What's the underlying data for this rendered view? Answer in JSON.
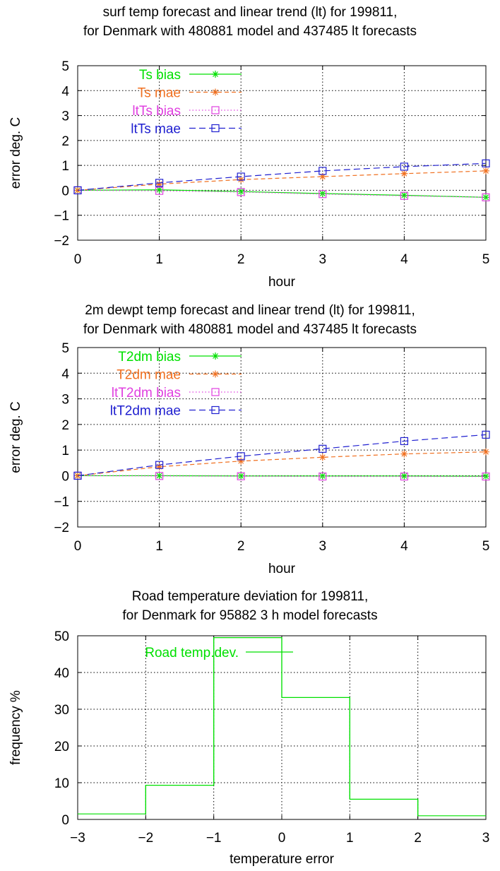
{
  "chart_data": [
    {
      "type": "line",
      "title": "surf temp forecast and linear trend (lt) for 199811,",
      "subtitle": "for Denmark with 480881 model and 437485 lt forecasts",
      "xlabel": "hour",
      "ylabel": "error deg. C",
      "xlim": [
        0,
        5
      ],
      "ylim": [
        -2,
        5
      ],
      "x_ticks": [
        0,
        1,
        2,
        3,
        4,
        5
      ],
      "y_ticks": [
        -2,
        -1,
        0,
        1,
        2,
        3,
        4,
        5
      ],
      "grid": true,
      "legend_position": "top-left",
      "x": [
        0,
        1,
        2,
        3,
        4,
        5
      ],
      "series": [
        {
          "name": "Ts bias",
          "color": "#00e000",
          "dash": "solid",
          "marker": "asterisk",
          "values": [
            0,
            0.02,
            -0.05,
            -0.13,
            -0.2,
            -0.28
          ]
        },
        {
          "name": "Ts mae",
          "color": "#f07020",
          "dash": "dashed",
          "marker": "asterisk",
          "values": [
            0,
            0.25,
            0.43,
            0.55,
            0.67,
            0.78
          ]
        },
        {
          "name": "ltTs bias",
          "color": "#e040e0",
          "dash": "dotted",
          "marker": "square",
          "values": [
            0,
            -0.02,
            -0.07,
            -0.15,
            -0.22,
            -0.28
          ]
        },
        {
          "name": "ltTs mae",
          "color": "#2020d0",
          "dash": "longdash",
          "marker": "square",
          "values": [
            0,
            0.3,
            0.55,
            0.78,
            0.95,
            1.08
          ]
        }
      ]
    },
    {
      "type": "line",
      "title": "2m dewpt temp forecast and linear trend (lt) for 199811,",
      "subtitle": "for Denmark with 480881 model and 437485 lt forecasts",
      "xlabel": "hour",
      "ylabel": "error deg. C",
      "xlim": [
        0,
        5
      ],
      "ylim": [
        -2,
        5
      ],
      "x_ticks": [
        0,
        1,
        2,
        3,
        4,
        5
      ],
      "y_ticks": [
        -2,
        -1,
        0,
        1,
        2,
        3,
        4,
        5
      ],
      "grid": true,
      "legend_position": "top-left",
      "x": [
        0,
        1,
        2,
        3,
        4,
        5
      ],
      "series": [
        {
          "name": "T2dm bias",
          "color": "#00e000",
          "dash": "solid",
          "marker": "asterisk",
          "values": [
            0,
            0,
            -0.01,
            -0.01,
            -0.01,
            -0.02
          ]
        },
        {
          "name": "T2dm mae",
          "color": "#f07020",
          "dash": "dashed",
          "marker": "asterisk",
          "values": [
            0,
            0.35,
            0.57,
            0.72,
            0.85,
            0.93
          ]
        },
        {
          "name": "ltT2dm bias",
          "color": "#e040e0",
          "dash": "dotted",
          "marker": "square",
          "values": [
            0,
            -0.01,
            -0.02,
            -0.03,
            -0.03,
            -0.03
          ]
        },
        {
          "name": "ltT2dm mae",
          "color": "#2020d0",
          "dash": "longdash",
          "marker": "square",
          "values": [
            0,
            0.42,
            0.76,
            1.05,
            1.35,
            1.6
          ]
        }
      ]
    },
    {
      "type": "histogram",
      "title": "Road temperature deviation for 199811,",
      "subtitle": "for Denmark for 95882 3 h model forecasts",
      "xlabel": "temperature error",
      "ylabel": "frequency %",
      "xlim": [
        -3,
        3
      ],
      "ylim": [
        0,
        50
      ],
      "x_ticks": [
        -3,
        -2,
        -1,
        0,
        1,
        2,
        3
      ],
      "y_ticks": [
        0,
        10,
        20,
        30,
        40,
        50
      ],
      "grid": true,
      "legend_position": "top-left",
      "bin_edges": [
        -3,
        -2,
        -1,
        0,
        1,
        2,
        3
      ],
      "series": [
        {
          "name": "Road temp.dev.",
          "color": "#00e000",
          "values": [
            1.5,
            9.3,
            49.5,
            33.2,
            5.5,
            1.0
          ]
        }
      ]
    }
  ]
}
